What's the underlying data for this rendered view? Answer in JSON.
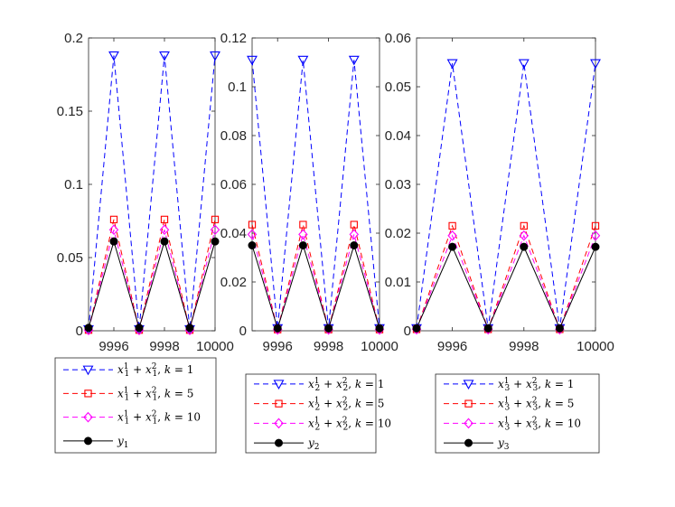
{
  "chart_data": [
    {
      "type": "line",
      "x": [
        9995,
        9996,
        9997,
        9998,
        9999,
        10000
      ],
      "xticks": [
        "9996",
        "9998",
        "10000"
      ],
      "xlim": [
        9995,
        10000
      ],
      "ylim": [
        0,
        0.2
      ],
      "yticks": [
        "0",
        "0.05",
        "0.1",
        "0.15",
        "0.2"
      ],
      "series": [
        {
          "name": "k1",
          "values": [
            0.001,
            0.188,
            0.001,
            0.188,
            0.001,
            0.188
          ]
        },
        {
          "name": "k5",
          "values": [
            0.0005,
            0.076,
            0.0005,
            0.076,
            0.0005,
            0.076
          ]
        },
        {
          "name": "k10",
          "values": [
            0.0005,
            0.069,
            0.0005,
            0.069,
            0.0005,
            0.069
          ]
        },
        {
          "name": "y",
          "values": [
            0.002,
            0.061,
            0.002,
            0.061,
            0.002,
            0.061
          ]
        }
      ],
      "legend": {
        "k1": {
          "sum": "x",
          "sup1": "1",
          "sub1": "1",
          "sup2": "2",
          "sub2": "1",
          "k": "k = 1"
        },
        "k5": {
          "sum": "x",
          "sup1": "1",
          "sub1": "1",
          "sup2": "2",
          "sub2": "1",
          "k": "k = 5"
        },
        "k10": {
          "sum": "x",
          "sup1": "1",
          "sub1": "1",
          "sup2": "2",
          "sub2": "1",
          "k": "k = 10"
        },
        "y": {
          "var": "y",
          "sub": "1"
        }
      }
    },
    {
      "type": "line",
      "x": [
        9995,
        9996,
        9997,
        9998,
        9999,
        10000
      ],
      "xticks": [
        "9996",
        "9998",
        "10000"
      ],
      "xlim": [
        9995,
        10000
      ],
      "ylim": [
        0,
        0.12
      ],
      "yticks": [
        "0",
        "0.02",
        "0.04",
        "0.06",
        "0.08",
        "0.1",
        "0.12"
      ],
      "series": [
        {
          "name": "k1",
          "values": [
            0.111,
            0.001,
            0.111,
            0.001,
            0.111,
            0.001
          ]
        },
        {
          "name": "k5",
          "values": [
            0.0435,
            0.0005,
            0.0435,
            0.0005,
            0.0435,
            0.0005
          ]
        },
        {
          "name": "k10",
          "values": [
            0.0395,
            0.0005,
            0.0395,
            0.0005,
            0.0395,
            0.0005
          ]
        },
        {
          "name": "y",
          "values": [
            0.035,
            0.001,
            0.035,
            0.001,
            0.035,
            0.001
          ]
        }
      ],
      "legend": {
        "k1": {
          "sum": "x",
          "sup1": "1",
          "sub1": "2",
          "sup2": "2",
          "sub2": "2",
          "k": "k = 1"
        },
        "k5": {
          "sum": "x",
          "sup1": "1",
          "sub1": "2",
          "sup2": "2",
          "sub2": "2",
          "k": "k = 5"
        },
        "k10": {
          "sum": "x",
          "sup1": "1",
          "sub1": "2",
          "sup2": "2",
          "sub2": "2",
          "k": "k = 10"
        },
        "y": {
          "var": "y",
          "sub": "2"
        }
      }
    },
    {
      "type": "line",
      "x": [
        9995,
        9996,
        9997,
        9998,
        9999,
        10000
      ],
      "xticks": [
        "9996",
        "9998",
        "10000"
      ],
      "xlim": [
        9995,
        10000
      ],
      "ylim": [
        0,
        0.06
      ],
      "yticks": [
        "0",
        "0.01",
        "0.02",
        "0.03",
        "0.04",
        "0.05",
        "0.06"
      ],
      "series": [
        {
          "name": "k1",
          "values": [
            0.0005,
            0.0548,
            0.0005,
            0.0548,
            0.0005,
            0.0548
          ]
        },
        {
          "name": "k5",
          "values": [
            0.0003,
            0.0215,
            0.0003,
            0.0215,
            0.0003,
            0.0215
          ]
        },
        {
          "name": "k10",
          "values": [
            0.0003,
            0.0195,
            0.0003,
            0.0195,
            0.0003,
            0.0195
          ]
        },
        {
          "name": "y",
          "values": [
            0.0005,
            0.0172,
            0.0005,
            0.0172,
            0.0005,
            0.0172
          ]
        }
      ],
      "legend": {
        "k1": {
          "sum": "x",
          "sup1": "1",
          "sub1": "3",
          "sup2": "2",
          "sub2": "3",
          "k": "k = 1"
        },
        "k5": {
          "sum": "x",
          "sup1": "1",
          "sub1": "3",
          "sup2": "2",
          "sub2": "3",
          "k": "k = 5"
        },
        "k10": {
          "sum": "x",
          "sup1": "1",
          "sub1": "3",
          "sup2": "2",
          "sub2": "3",
          "k": "k = 10"
        },
        "y": {
          "var": "y",
          "sub": "3"
        }
      }
    }
  ],
  "styles": {
    "k1": {
      "color": "#0000ff",
      "dash": "6,4",
      "marker": "triangle-down"
    },
    "k5": {
      "color": "#ff0000",
      "dash": "6,4",
      "marker": "square"
    },
    "k10": {
      "color": "#ff00ff",
      "dash": "6,4",
      "marker": "diamond"
    },
    "y": {
      "color": "#000000",
      "dash": "",
      "marker": "circle"
    }
  }
}
